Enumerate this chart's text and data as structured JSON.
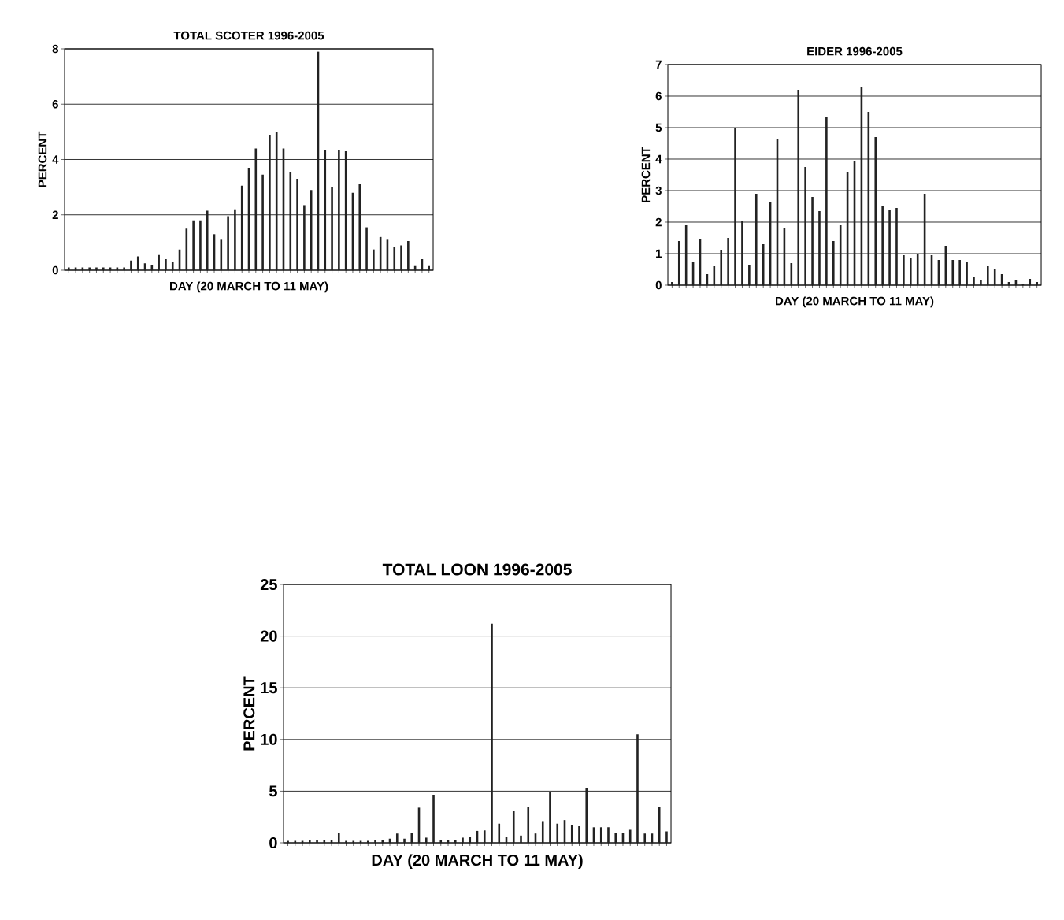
{
  "chart_data": [
    {
      "type": "bar",
      "title": "TOTAL SCOTER 1996-2005",
      "xlabel": "DAY (20 MARCH TO 11 MAY)",
      "ylabel": "PERCENT",
      "color": "#222222",
      "grid": "y",
      "tick_labels": "y",
      "ylim": [
        0,
        8
      ],
      "yticks": [
        0,
        2,
        4,
        6,
        8
      ],
      "categories": [
        null,
        null,
        null,
        null,
        null,
        null,
        null,
        null,
        null,
        null,
        null,
        null,
        null,
        null,
        null,
        null,
        null,
        null,
        null,
        null,
        null,
        null,
        null,
        null,
        null,
        null,
        null,
        null,
        null,
        null,
        null,
        null,
        null,
        null,
        null,
        null,
        null,
        null,
        null,
        null,
        null,
        null,
        null,
        null,
        null,
        null,
        null,
        null,
        null,
        null,
        null,
        null,
        null
      ],
      "values": [
        0.1,
        0.1,
        0.1,
        0.1,
        0.1,
        0.1,
        0.1,
        0.1,
        0.1,
        0.35,
        0.5,
        0.25,
        0.2,
        0.55,
        0.4,
        0.3,
        0.75,
        1.5,
        1.8,
        1.8,
        2.15,
        1.3,
        1.1,
        1.95,
        2.2,
        3.05,
        3.7,
        4.4,
        3.45,
        4.9,
        5.0,
        4.4,
        3.55,
        3.3,
        2.35,
        2.9,
        7.9,
        4.35,
        3.0,
        4.35,
        4.3,
        2.8,
        3.1,
        1.55,
        0.75,
        1.2,
        1.1,
        0.85,
        0.9,
        1.05,
        0.15,
        0.4,
        0.15
      ]
    },
    {
      "type": "bar",
      "title": "EIDER 1996-2005",
      "xlabel": "DAY (20 MARCH TO 11 MAY)",
      "ylabel": "PERCENT",
      "color": "#222222",
      "grid": "y",
      "tick_labels": "y",
      "ylim": [
        0,
        7
      ],
      "yticks": [
        0,
        1,
        2,
        3,
        4,
        5,
        6,
        7
      ],
      "categories": [
        null,
        null,
        null,
        null,
        null,
        null,
        null,
        null,
        null,
        null,
        null,
        null,
        null,
        null,
        null,
        null,
        null,
        null,
        null,
        null,
        null,
        null,
        null,
        null,
        null,
        null,
        null,
        null,
        null,
        null,
        null,
        null,
        null,
        null,
        null,
        null,
        null,
        null,
        null,
        null,
        null,
        null,
        null,
        null,
        null,
        null,
        null,
        null,
        null,
        null,
        null,
        null,
        null
      ],
      "values": [
        0.1,
        1.4,
        1.9,
        0.75,
        1.45,
        0.35,
        0.6,
        1.1,
        1.5,
        5.0,
        2.05,
        0.65,
        2.9,
        1.3,
        2.65,
        4.65,
        1.8,
        0.7,
        6.2,
        3.75,
        2.8,
        2.35,
        5.35,
        1.4,
        1.9,
        3.6,
        3.95,
        6.3,
        5.5,
        4.7,
        2.5,
        2.4,
        2.45,
        0.95,
        0.85,
        1.0,
        2.9,
        0.95,
        0.8,
        1.25,
        0.8,
        0.8,
        0.75,
        0.25,
        0.15,
        0.6,
        0.5,
        0.35,
        0.1,
        0.15,
        0.05,
        0.2,
        0.1
      ]
    },
    {
      "type": "bar",
      "title": "TOTAL LOON 1996-2005",
      "xlabel": "DAY (20 MARCH TO 11 MAY)",
      "ylabel": "PERCENT",
      "color": "#222222",
      "grid": "y",
      "tick_labels": "y",
      "ylim": [
        0,
        25
      ],
      "yticks": [
        0,
        5,
        10,
        15,
        20,
        25
      ],
      "categories": [
        null,
        null,
        null,
        null,
        null,
        null,
        null,
        null,
        null,
        null,
        null,
        null,
        null,
        null,
        null,
        null,
        null,
        null,
        null,
        null,
        null,
        null,
        null,
        null,
        null,
        null,
        null,
        null,
        null,
        null,
        null,
        null,
        null,
        null,
        null,
        null,
        null,
        null,
        null,
        null,
        null,
        null,
        null,
        null,
        null,
        null,
        null,
        null,
        null,
        null,
        null,
        null,
        null
      ],
      "values": [
        0.2,
        0.2,
        0.2,
        0.3,
        0.3,
        0.3,
        0.3,
        1.0,
        0.2,
        0.2,
        0.2,
        0.2,
        0.3,
        0.3,
        0.4,
        0.9,
        0.4,
        0.95,
        3.4,
        0.5,
        4.65,
        0.3,
        0.3,
        0.3,
        0.5,
        0.6,
        1.15,
        1.2,
        21.2,
        1.85,
        0.6,
        3.1,
        0.7,
        3.5,
        0.9,
        2.1,
        4.9,
        1.85,
        2.2,
        1.75,
        1.6,
        5.25,
        1.5,
        1.5,
        1.5,
        1.0,
        1.0,
        1.25,
        10.5,
        0.9,
        0.9,
        3.5,
        1.1
      ]
    }
  ]
}
